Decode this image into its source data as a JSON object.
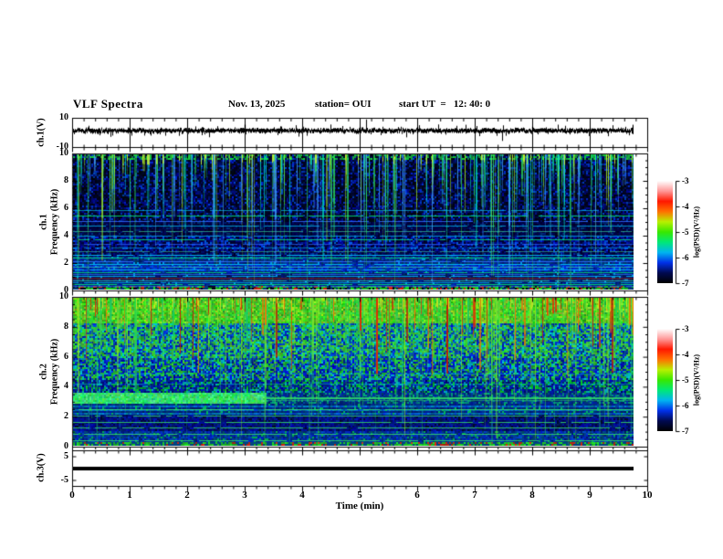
{
  "header": {
    "title": "VLF Spectra",
    "date": "Nov. 13, 2025",
    "station": "station= OUI",
    "start_ut": "start UT  =   12: 40: 0"
  },
  "xaxis": {
    "label": "Time (min)",
    "ticks": [
      0,
      1,
      2,
      3,
      4,
      5,
      6,
      7,
      8,
      9,
      10
    ],
    "range_min": [
      0,
      10
    ],
    "minor_step_min": 0.2,
    "data_end_min": 9.75
  },
  "colors": {
    "colorbar_gradient": [
      "#000000",
      "#000a50",
      "#0030e8",
      "#00b4f0",
      "#00e878",
      "#38e800",
      "#b8f000",
      "#ff7000",
      "#ff1800",
      "#ff9898",
      "#ffffff"
    ],
    "ch1_streaks": [
      "#2ee85a",
      "#00e0c0",
      "#a8ee22",
      "#44aaff"
    ],
    "ch2_green_streaks": [
      "#2ed848",
      "#8fe822",
      "#18c870"
    ],
    "ch2_red_streaks": [
      "#e82800",
      "#ff6a00",
      "#c81800"
    ],
    "interference_line_cyan": "#00c8ff",
    "interference_line_green": "#00e07a",
    "red_band": "#7a1a10"
  },
  "chart_data": [
    {
      "id": "ch1-voltage",
      "type": "line",
      "ylabel": "ch.1(V)",
      "ylim": [
        -10,
        10
      ],
      "yticks": [
        {
          "value": 10,
          "label": "10"
        },
        {
          "value": -10,
          "label": "-10"
        }
      ],
      "signal": {
        "description": "continuous broadband noise centered near 0 V, about ±1.5 V, with sporadic impulses to ±5 V and one large ~9 V spike near 5.1 min",
        "noise_V": 1.5,
        "max_spike_V": 9,
        "big_spike_min": 5.1
      }
    },
    {
      "id": "ch1-spectrogram",
      "type": "heatmap",
      "ylabel_lines": [
        "ch.1",
        "Frequency (kHz)"
      ],
      "ylim_kHz": [
        0,
        10
      ],
      "yticks": [
        10,
        8,
        6,
        4,
        2,
        0
      ],
      "ytick_minor_step_kHz": 0.5,
      "colorbar": {
        "label": "log(PSD)(V²/Hz)",
        "ticks": [
          -3,
          -4,
          -5,
          -6,
          -7
        ],
        "range": [
          -7,
          -3
        ]
      },
      "features": {
        "background": "black and dark-blue above ~2.5 kHz with dense vertical sferic streaks descending from 10 kHz; brighter blue horizontal striping below 2.5 kHz; darker bands near 4-5 kHz and 2-3 kHz",
        "vertical_streak_count": 260,
        "horizontal_lines_kHz": [
          5.9,
          5.5,
          5.1,
          4.7,
          4.35,
          4.0,
          3.7,
          3.4,
          3.1,
          2.85,
          2.6,
          2.35,
          2.1,
          1.9,
          1.7,
          1.5,
          1.3,
          1.15,
          1.0,
          0.7,
          0.55,
          0.4,
          0.25
        ],
        "red_line_kHz": 0.85
      }
    },
    {
      "id": "ch2-spectrogram",
      "type": "heatmap",
      "ylabel_lines": [
        "ch.2",
        "Frequency (kHz)"
      ],
      "ylim_kHz": [
        0,
        10
      ],
      "yticks": [
        10,
        8,
        6,
        4,
        2,
        0
      ],
      "ytick_minor_step_kHz": 0.5,
      "colorbar": {
        "label": "log(PSD)(V²/Hz)",
        "ticks": [
          -3,
          -4,
          -5,
          -6,
          -7
        ],
        "range": [
          -7,
          -3
        ]
      },
      "features": {
        "background": "bright green/yellow 8-10 kHz with red sferic streaks; mixed green/cyan/blue 3.6-8 kHz; mottled blue with horizontal texture below 3 kHz; dark blue 1-2 kHz",
        "bright_band": {
          "f_kHz": [
            2.95,
            3.6
          ],
          "ends_at_min": 3.35,
          "continues_as_line_kHz": 3.25
        },
        "green_streak_count": 280,
        "red_streak_count": 70,
        "horizontal_lines_kHz": [
          4.9,
          4.2,
          2.5,
          2.05,
          1.6,
          1.25,
          0.8,
          0.35
        ]
      }
    },
    {
      "id": "ch3-voltage",
      "type": "line",
      "ylabel": "ch.3(V)",
      "ylim": [
        -7.5,
        7.5
      ],
      "yticks": [
        {
          "value": 5,
          "label": "5"
        },
        {
          "value": -5,
          "label": "-5"
        }
      ],
      "signal": {
        "description": "flat thick line at 0 V for the entire record",
        "value_V": 0,
        "line_thickness_px": 4
      }
    }
  ]
}
